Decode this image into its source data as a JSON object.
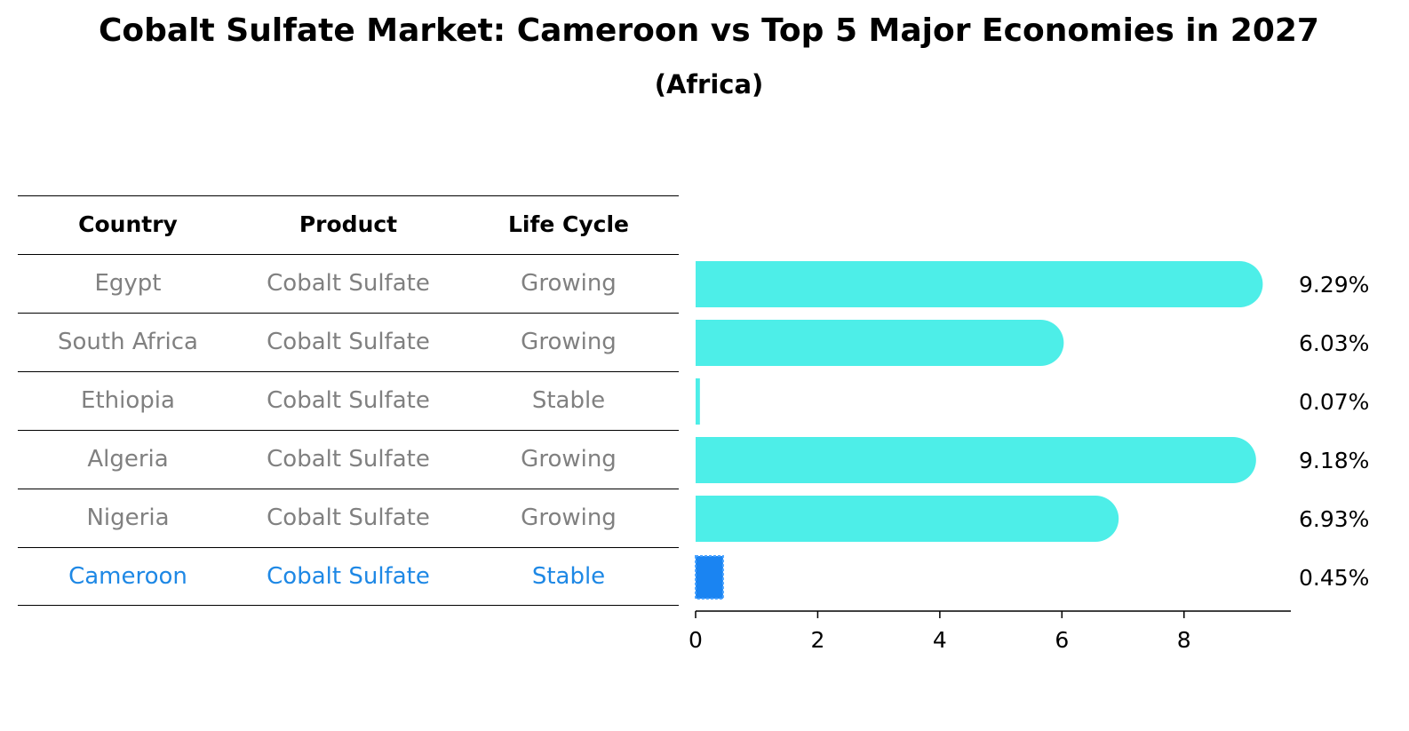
{
  "title": "Cobalt Sulfate Market: Cameroon vs Top 5 Major Economies in 2027",
  "subtitle": "(Africa)",
  "table": {
    "headers": [
      "Country",
      "Product",
      "Life Cycle"
    ],
    "rows": [
      [
        "Egypt",
        "Cobalt Sulfate",
        "Growing"
      ],
      [
        "South Africa",
        "Cobalt Sulfate",
        "Growing"
      ],
      [
        "Ethiopia",
        "Cobalt Sulfate",
        "Stable"
      ],
      [
        "Algeria",
        "Cobalt Sulfate",
        "Growing"
      ],
      [
        "Nigeria",
        "Cobalt Sulfate",
        "Growing"
      ],
      [
        "Cameroon",
        "Cobalt Sulfate",
        "Stable"
      ]
    ],
    "highlight_row": 5
  },
  "chart_data": {
    "type": "bar",
    "orientation": "horizontal",
    "categories": [
      "Egypt",
      "South Africa",
      "Ethiopia",
      "Algeria",
      "Nigeria",
      "Cameroon"
    ],
    "values": [
      9.29,
      6.03,
      0.07,
      9.18,
      6.93,
      0.45
    ],
    "value_labels": [
      "9.29%",
      "6.03%",
      "0.07%",
      "9.18%",
      "6.93%",
      "0.45%"
    ],
    "x_ticks": [
      0,
      2,
      4,
      6,
      8
    ],
    "xlim": [
      0,
      9.75
    ],
    "xlabel": "",
    "ylabel": "",
    "grid": false,
    "colors": {
      "bar": "#4deee8",
      "highlight": "#1a84f2"
    },
    "highlight_index": 5
  }
}
